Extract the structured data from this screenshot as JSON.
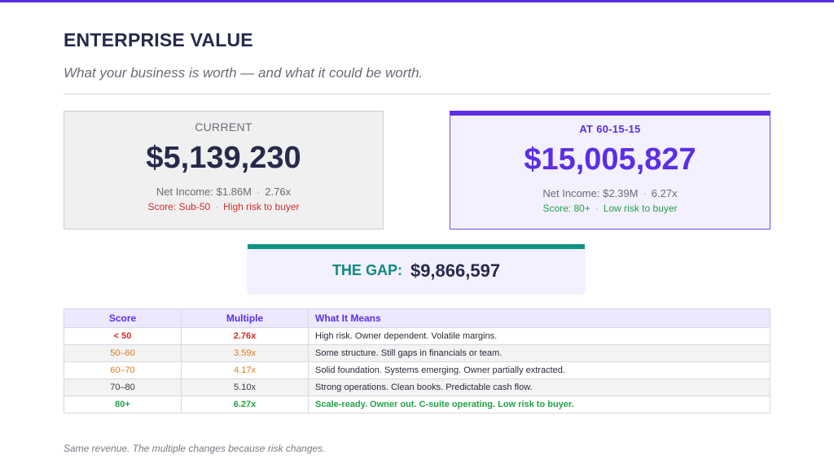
{
  "header": {
    "title": "ENTERPRISE VALUE",
    "subtitle": "What your business is worth — and what it could be worth."
  },
  "colors": {
    "accent": "#5b2ee6",
    "teal": "#0f9484",
    "danger": "#d42c2c",
    "warning": "#e07b1a",
    "success": "#23a348"
  },
  "current": {
    "label": "CURRENT",
    "value": "$5,139,230",
    "net_income": "Net Income: $1.86M",
    "multiple": "2.76x",
    "score": "Score: Sub-50",
    "risk": "High risk to buyer"
  },
  "target": {
    "label": "AT 60-15-15",
    "value": "$15,005,827",
    "net_income": "Net Income: $2.39M",
    "multiple": "6.27x",
    "score": "Score: 80+",
    "risk": "Low risk to buyer"
  },
  "gap": {
    "label": "THE GAP:",
    "value": "$9,866,597"
  },
  "table": {
    "headers": [
      "Score",
      "Multiple",
      "What It Means"
    ],
    "rows": [
      {
        "score": "< 50",
        "multiple": "2.76x",
        "meaning": "High risk. Owner dependent. Volatile margins.",
        "color": "#d42c2c",
        "bold": true
      },
      {
        "score": "50–60",
        "multiple": "3.59x",
        "meaning": "Some structure. Still gaps in financials or team.",
        "color": "#e07b1a",
        "bold": false
      },
      {
        "score": "60–70",
        "multiple": "4.17x",
        "meaning": "Solid foundation. Systems emerging. Owner partially extracted.",
        "color": "#e07b1a",
        "bold": false
      },
      {
        "score": "70–80",
        "multiple": "5.10x",
        "meaning": "Strong operations. Clean books. Predictable cash flow.",
        "color": "#3a3a46",
        "bold": false
      },
      {
        "score": "80+",
        "multiple": "6.27x",
        "meaning": "Scale-ready. Owner out. C-suite operating. Low risk to buyer.",
        "color": "#23a348",
        "bold": true
      }
    ]
  },
  "footnote": "Same revenue. The multiple changes because risk changes."
}
